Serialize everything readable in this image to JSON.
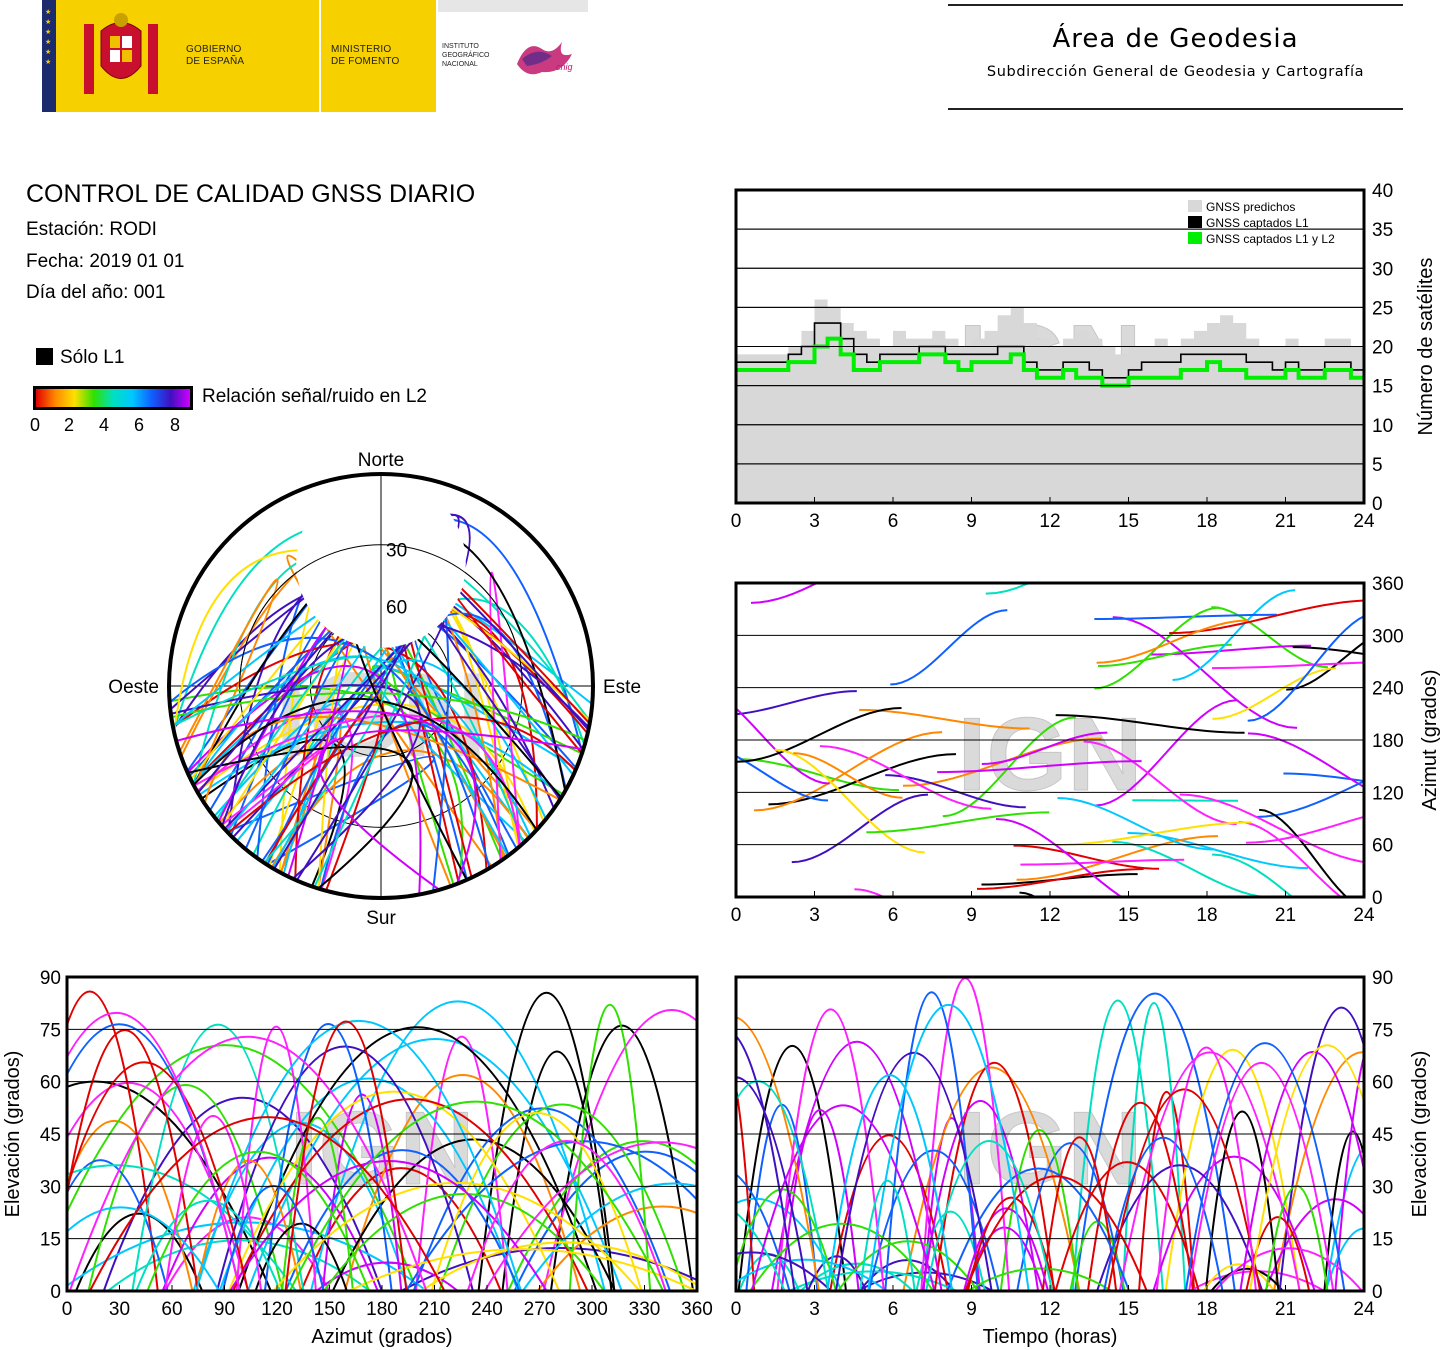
{
  "header": {
    "gov": [
      "GOBIERNO",
      "DE ESPAÑA"
    ],
    "ministry": [
      "MINISTERIO",
      "DE FOMENTO"
    ],
    "institute": [
      "INSTITUTO",
      "GEOGRÁFICO",
      "NACIONAL"
    ],
    "cnig": "cnig",
    "area_title": "Área de Geodesia",
    "area_subtitle": "Subdirección General de Geodesia y Cartografía"
  },
  "report": {
    "title": "CONTROL DE CALIDAD GNSS DIARIO",
    "station": "Estación: RODI",
    "date": "Fecha: 2019 01 01",
    "doy": "Día del año: 001"
  },
  "legend": {
    "l1_only": "Sólo L1",
    "snr_label": "Relación señal/ruido en L2",
    "snr_ticks": [
      "0",
      "2",
      "4",
      "6",
      "8"
    ],
    "snr_colors": [
      "#e00000",
      "#ff8800",
      "#ffe000",
      "#30e000",
      "#00e0c0",
      "#00c8ff",
      "#1060ff",
      "#4010c0",
      "#d000ff"
    ]
  },
  "watermark": "IGN",
  "chart_data": [
    {
      "id": "satellites",
      "type": "area",
      "xlabel": "",
      "ylabel": "Número de satélites",
      "xlim": [
        0,
        24
      ],
      "ylim": [
        0,
        40
      ],
      "xticks": [
        "0",
        "3",
        "6",
        "9",
        "12",
        "15",
        "18",
        "21",
        "24"
      ],
      "yticks": [
        "0",
        "5",
        "10",
        "15",
        "20",
        "25",
        "30",
        "35",
        "40"
      ],
      "grid": true,
      "legend_position": "top-right",
      "series": [
        {
          "name": "GNSS predichos",
          "color": "#d8d8d8",
          "x": [
            0,
            1,
            2,
            2.5,
            3,
            3.5,
            4,
            4.5,
            5,
            5.5,
            6,
            6.5,
            7,
            7.5,
            8,
            8.5,
            9,
            9.5,
            10,
            10.5,
            11,
            11.5,
            12,
            12.5,
            13,
            13.5,
            14,
            14.5,
            15,
            15.5,
            16,
            16.5,
            17,
            17.5,
            18,
            18.5,
            19,
            19.5,
            20,
            20.5,
            21,
            21.5,
            22,
            22.5,
            23,
            23.5,
            24
          ],
          "values": [
            19,
            19,
            20,
            22,
            26,
            25,
            23,
            22,
            21,
            20,
            22,
            21,
            21,
            22,
            21,
            20,
            21,
            22,
            24,
            25,
            23,
            21,
            20,
            21,
            22,
            21,
            20,
            19,
            20,
            20,
            21,
            20,
            21,
            22,
            23,
            24,
            23,
            21,
            20,
            20,
            21,
            20,
            20,
            21,
            21,
            20,
            20
          ]
        },
        {
          "name": "GNSS captados L1",
          "color": "#000000",
          "x": [
            0,
            1,
            2,
            2.5,
            3,
            3.5,
            4,
            4.5,
            5,
            5.5,
            6,
            6.5,
            7,
            7.5,
            8,
            8.5,
            9,
            9.5,
            10,
            10.5,
            11,
            11.5,
            12,
            12.5,
            13,
            13.5,
            14,
            14.5,
            15,
            15.5,
            16,
            16.5,
            17,
            17.5,
            18,
            18.5,
            19,
            19.5,
            20,
            20.5,
            21,
            21.5,
            22,
            22.5,
            23,
            23.5,
            24
          ],
          "values": [
            18,
            18,
            19,
            20,
            23,
            23,
            21,
            19,
            18,
            19,
            19,
            19,
            20,
            20,
            19,
            19,
            19,
            19,
            20,
            20,
            18,
            17,
            17,
            18,
            18,
            17,
            16,
            16,
            17,
            18,
            18,
            18,
            19,
            19,
            19,
            19,
            19,
            18,
            18,
            17,
            18,
            17,
            17,
            18,
            18,
            17,
            17
          ]
        },
        {
          "name": "GNSS captados L1 y L2",
          "color": "#00ee00",
          "x": [
            0,
            1,
            2,
            2.5,
            3,
            3.5,
            4,
            4.5,
            5,
            5.5,
            6,
            6.5,
            7,
            7.5,
            8,
            8.5,
            9,
            9.5,
            10,
            10.5,
            11,
            11.5,
            12,
            12.5,
            13,
            13.5,
            14,
            14.5,
            15,
            15.5,
            16,
            16.5,
            17,
            17.5,
            18,
            18.5,
            19,
            19.5,
            20,
            20.5,
            21,
            21.5,
            22,
            22.5,
            23,
            23.5,
            24
          ],
          "values": [
            17,
            17,
            18,
            18,
            20,
            21,
            19,
            17,
            17,
            18,
            18,
            18,
            19,
            19,
            18,
            17,
            18,
            18,
            18,
            19,
            17,
            16,
            16,
            17,
            16,
            16,
            15,
            15,
            16,
            16,
            16,
            16,
            17,
            17,
            18,
            17,
            17,
            16,
            16,
            16,
            17,
            16,
            16,
            17,
            17,
            16,
            16
          ]
        }
      ]
    },
    {
      "id": "skyplot",
      "type": "scatter",
      "title": "",
      "directions": {
        "north": "Norte",
        "south": "Sur",
        "west": "Oeste",
        "east": "Este"
      },
      "elevation_rings": [
        "30",
        "60"
      ]
    },
    {
      "id": "azimuth-time",
      "type": "scatter",
      "xlabel": "",
      "ylabel": "Azimut (grados)",
      "xlim": [
        0,
        24
      ],
      "ylim": [
        0,
        360
      ],
      "xticks": [
        "0",
        "3",
        "6",
        "9",
        "12",
        "15",
        "18",
        "21",
        "24"
      ],
      "yticks": [
        "0",
        "60",
        "120",
        "180",
        "240",
        "300",
        "360"
      ],
      "grid": true
    },
    {
      "id": "elevation-azimuth",
      "type": "scatter",
      "xlabel": "Azimut (grados)",
      "ylabel": "Elevación (grados)",
      "xlim": [
        0,
        360
      ],
      "ylim": [
        0,
        90
      ],
      "xticks": [
        "0",
        "30",
        "60",
        "90",
        "120",
        "150",
        "180",
        "210",
        "240",
        "270",
        "300",
        "330",
        "360"
      ],
      "yticks": [
        "0",
        "15",
        "30",
        "45",
        "60",
        "75",
        "90"
      ],
      "grid": true
    },
    {
      "id": "elevation-time",
      "type": "scatter",
      "xlabel": "Tiempo (horas)",
      "ylabel": "Elevación (grados)",
      "xlim": [
        0,
        24
      ],
      "ylim": [
        0,
        90
      ],
      "xticks": [
        "0",
        "3",
        "6",
        "9",
        "12",
        "15",
        "18",
        "21",
        "24"
      ],
      "yticks": [
        "0",
        "15",
        "30",
        "45",
        "60",
        "75",
        "90"
      ],
      "grid": true
    }
  ]
}
